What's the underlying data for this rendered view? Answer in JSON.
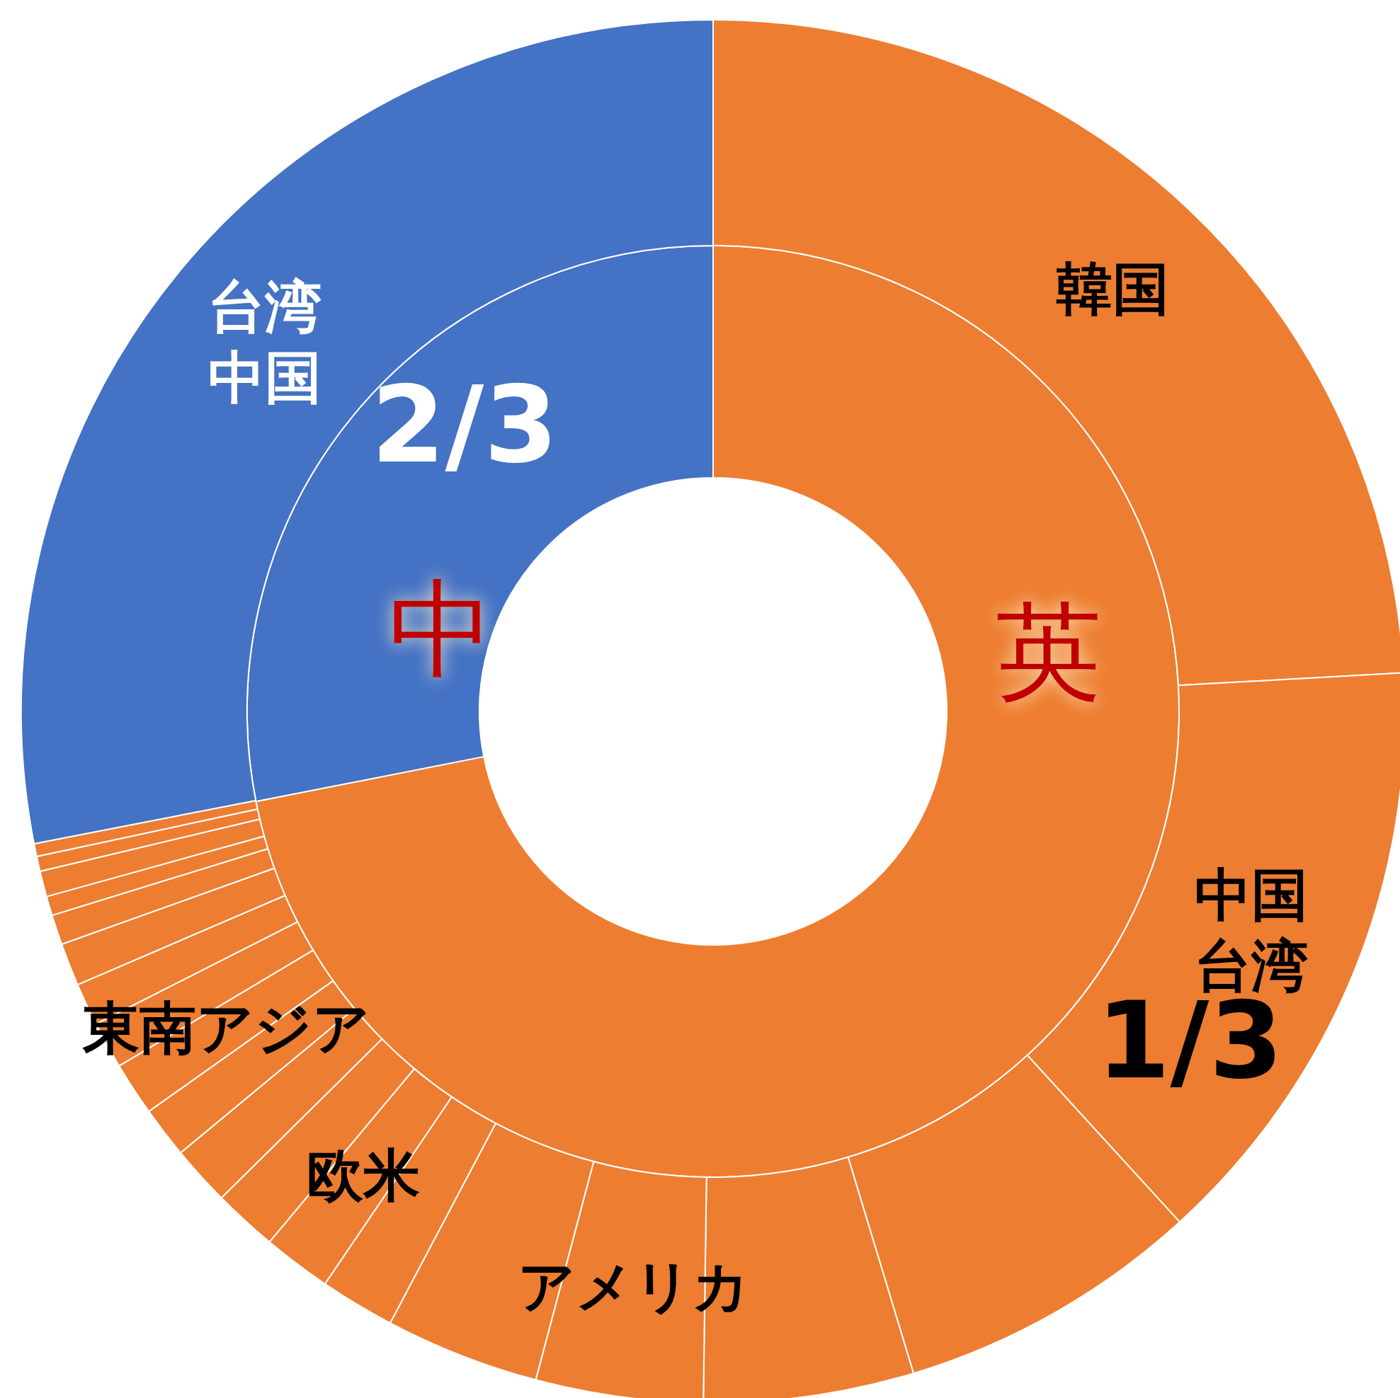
{
  "chart_data": [
    {
      "type": "donut",
      "categories": [
        "英",
        "中"
      ],
      "values": [
        71.9,
        28.1
      ],
      "colors": [
        "#ed7d31",
        "#4472c4"
      ],
      "legend": false
    },
    {
      "type": "donut",
      "categories": [
        "韓国",
        "中国台湾",
        null,
        null,
        "アメリカ",
        null,
        null,
        "欧米",
        null,
        null,
        null,
        "東南アジア",
        null,
        null,
        null,
        null,
        null,
        null,
        null,
        null,
        "台湾中国"
      ],
      "values": [
        24.1,
        14.1,
        7.1,
        4.9,
        3.9,
        3.6,
        1.75,
        1.6,
        1.5,
        1.4,
        1.2,
        1.25,
        1.1,
        1.0,
        1.0,
        0.7,
        0.45,
        0.6,
        0.35,
        0.3,
        28.05
      ],
      "colors": [
        "#ed7d31",
        "#ed7d31",
        "#ed7d31",
        "#ed7d31",
        "#ed7d31",
        "#ed7d31",
        "#ed7d31",
        "#ed7d31",
        "#ed7d31",
        "#ed7d31",
        "#ed7d31",
        "#ed7d31",
        "#ed7d31",
        "#ed7d31",
        "#ed7d31",
        "#ed7d31",
        "#ed7d31",
        "#ed7d31",
        "#ed7d31",
        "#ed7d31",
        "#4472c4"
      ],
      "annotations": [
        "2/3",
        "1/3"
      ],
      "legend": false
    }
  ]
}
